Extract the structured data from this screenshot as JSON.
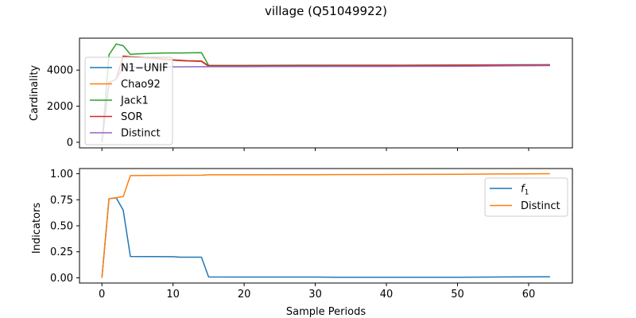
{
  "figure": {
    "title": "village (Q51049922)"
  },
  "chart_data": [
    {
      "type": "line",
      "xlabel": "",
      "ylabel": "Cardinality",
      "xlim": [
        -3.15,
        66.15
      ],
      "ylim": [
        -310,
        5770
      ],
      "yticks": [
        0,
        2000,
        4000
      ],
      "xticks": [
        0,
        10,
        20,
        30,
        40,
        50,
        60
      ],
      "show_xtick_labels": false,
      "grid": false,
      "legend_placement": "upper-left",
      "series": [
        {
          "name": "N1−UNIF",
          "color": "#1f77b4",
          "x": [
            0,
            1,
            2,
            3,
            4,
            5,
            7,
            10,
            12,
            14,
            15,
            20,
            30,
            40,
            50,
            55,
            63
          ],
          "y": [
            0,
            3300,
            3500,
            4750,
            4720,
            4700,
            4650,
            4550,
            4500,
            4480,
            4200,
            4200,
            4210,
            4220,
            4240,
            4250,
            4260
          ]
        },
        {
          "name": "Chao92",
          "color": "#ff7f0e",
          "x": [
            0,
            1,
            2,
            3,
            4,
            5,
            7,
            10,
            12,
            14,
            15,
            20,
            30,
            40,
            50,
            55,
            63
          ],
          "y": [
            0,
            3300,
            3500,
            4760,
            4730,
            4710,
            4660,
            4560,
            4510,
            4490,
            4220,
            4220,
            4230,
            4240,
            4260,
            4270,
            4280
          ]
        },
        {
          "name": "Jack1",
          "color": "#2ca02c",
          "x": [
            0,
            1,
            2,
            3,
            4,
            5,
            7,
            9,
            11,
            13,
            14,
            15,
            20,
            30,
            40,
            50,
            55,
            63
          ],
          "y": [
            0,
            4850,
            5450,
            5350,
            4870,
            4900,
            4930,
            4950,
            4950,
            4960,
            4970,
            4260,
            4260,
            4270,
            4270,
            4280,
            4290,
            4300
          ]
        },
        {
          "name": "SOR",
          "color": "#d62728",
          "x": [
            0,
            1,
            2,
            3,
            4,
            5,
            7,
            10,
            12,
            14,
            15,
            20,
            30,
            40,
            50,
            55,
            63
          ],
          "y": [
            0,
            3300,
            3500,
            4780,
            4740,
            4720,
            4680,
            4570,
            4520,
            4500,
            4240,
            4240,
            4250,
            4260,
            4270,
            4280,
            4290
          ]
        },
        {
          "name": "Distinct",
          "color": "#9467bd",
          "x": [
            0,
            1,
            2,
            3,
            4,
            10,
            15,
            20,
            30,
            40,
            50,
            55,
            63
          ],
          "y": [
            0,
            3300,
            3500,
            4150,
            4170,
            4180,
            4190,
            4190,
            4200,
            4200,
            4210,
            4230,
            4250
          ]
        }
      ]
    },
    {
      "type": "line",
      "xlabel": "Sample Periods",
      "ylabel": "Indicators",
      "xlim": [
        -3.15,
        66.15
      ],
      "ylim": [
        -0.05,
        1.05
      ],
      "yticks": [
        0.0,
        0.25,
        0.5,
        0.75,
        1.0
      ],
      "ytick_labels": [
        "0.00",
        "0.25",
        "0.50",
        "0.75",
        "1.00"
      ],
      "xticks": [
        0,
        10,
        20,
        30,
        40,
        50,
        60
      ],
      "xtick_labels": [
        "0",
        "10",
        "20",
        "30",
        "40",
        "50",
        "60"
      ],
      "grid": false,
      "legend_placement": "upper-right",
      "series": [
        {
          "name": "f1",
          "color": "#1f77b4",
          "x": [
            0,
            1,
            2,
            3,
            4,
            10,
            11,
            14,
            15,
            20,
            30,
            33,
            40,
            50,
            55,
            63
          ],
          "y": [
            0.0,
            0.76,
            0.77,
            0.65,
            0.205,
            0.203,
            0.198,
            0.198,
            0.008,
            0.007,
            0.007,
            0.005,
            0.005,
            0.006,
            0.007,
            0.01
          ]
        },
        {
          "name": "Distinct",
          "color": "#ff7f0e",
          "x": [
            0,
            1,
            2,
            3,
            4,
            10,
            14,
            15,
            20,
            30,
            33,
            40,
            50,
            55,
            63
          ],
          "y": [
            0.0,
            0.76,
            0.77,
            0.78,
            0.982,
            0.985,
            0.986,
            0.99,
            0.99,
            0.991,
            0.992,
            0.993,
            0.995,
            0.997,
            1.0
          ]
        }
      ]
    }
  ]
}
